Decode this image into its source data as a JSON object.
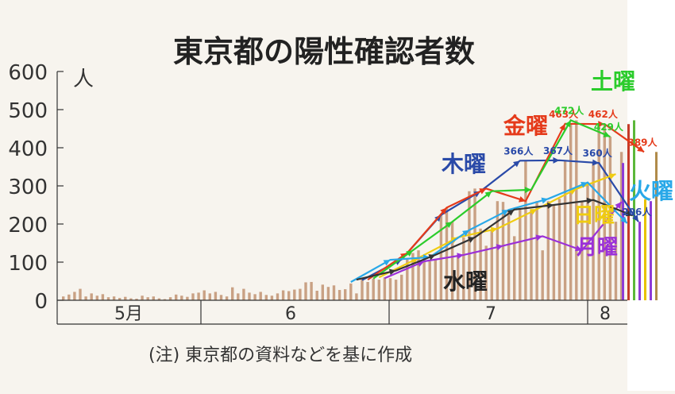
{
  "chart_data": {
    "type": "bar",
    "title": "東京都の陽性確認者数",
    "ylabel": "人",
    "ylim": [
      0,
      600
    ],
    "yticks": [
      "0",
      "100",
      "200",
      "300",
      "400",
      "500",
      "600"
    ],
    "month_labels": [
      "5月",
      "6",
      "7",
      "8"
    ],
    "note": "(注) 東京都の資料などを基に作成",
    "grid": false,
    "bar_color": "#c9a184",
    "values": [
      10,
      15,
      22,
      30,
      10,
      18,
      12,
      16,
      8,
      10,
      6,
      9,
      5,
      4,
      12,
      8,
      10,
      5,
      3,
      8,
      15,
      12,
      9,
      18,
      20,
      26,
      18,
      22,
      14,
      10,
      34,
      18,
      30,
      20,
      16,
      22,
      14,
      12,
      18,
      26,
      24,
      28,
      30,
      47,
      48,
      25,
      41,
      35,
      39,
      27,
      29,
      44,
      18,
      55,
      48,
      57,
      54,
      60,
      58,
      54,
      67,
      107,
      124,
      131,
      111,
      102,
      106,
      224,
      243,
      206,
      119,
      165,
      286,
      293,
      188,
      143,
      184,
      260,
      258,
      237,
      168,
      238,
      366,
      237,
      260,
      131,
      260,
      250,
      266,
      367,
      463,
      472,
      258,
      309,
      360,
      463,
      462,
      429,
      206,
      389
    ],
    "vertical_marks": [
      {
        "value": 360,
        "color": "#8e3bd6"
      },
      {
        "value": 462,
        "color": "#c53a28"
      },
      {
        "value": 472,
        "color": "#5bb83a"
      },
      {
        "value": 206,
        "color": "#8e3bd6"
      },
      {
        "value": 265,
        "color": "#e8c200"
      },
      {
        "value": 260,
        "color": "#8e3bd6"
      },
      {
        "value": 389,
        "color": "#b08b4a"
      }
    ],
    "series": [
      {
        "name": "木曜",
        "color": "#2a4aa8",
        "label_color": "#2a4aa8",
        "points": [
          [
            53,
            53
          ],
          [
            60,
            107
          ],
          [
            67,
            224
          ],
          [
            74,
            286
          ],
          [
            81,
            366
          ],
          [
            88,
            367
          ],
          [
            95,
            360
          ],
          [
            102,
            206
          ]
        ],
        "data_labels": [
          {
            "i": 4,
            "text": "366人"
          },
          {
            "i": 5,
            "text": "367人"
          },
          {
            "i": 6,
            "text": "360人"
          },
          {
            "i": 7,
            "text": "206人"
          }
        ]
      },
      {
        "name": "金曜",
        "color": "#e53a1a",
        "label_color": "#e53a1a",
        "points": [
          [
            54,
            54
          ],
          [
            61,
            124
          ],
          [
            68,
            243
          ],
          [
            75,
            293
          ],
          [
            82,
            260
          ],
          [
            89,
            463
          ],
          [
            96,
            462
          ],
          [
            103,
            389
          ]
        ],
        "data_labels": [
          {
            "i": 5,
            "text": "463人"
          },
          {
            "i": 6,
            "text": "462人"
          },
          {
            "i": 7,
            "text": "389人"
          }
        ]
      },
      {
        "name": "土曜",
        "color": "#2bcc2b",
        "label_color": "#2bcc2b",
        "points": [
          [
            55,
            57
          ],
          [
            62,
            131
          ],
          [
            69,
            206
          ],
          [
            76,
            286
          ],
          [
            83,
            290
          ],
          [
            90,
            472
          ],
          [
            97,
            429
          ]
        ],
        "data_labels": [
          {
            "i": 5,
            "text": "472人"
          },
          {
            "i": 6,
            "text": "429人"
          }
        ]
      },
      {
        "name": "日曜",
        "color": "#f0cc10",
        "label_color": "#f0cc10",
        "points": [
          [
            56,
            60
          ],
          [
            63,
            111
          ],
          [
            70,
            165
          ],
          [
            77,
            188
          ],
          [
            84,
            239
          ],
          [
            91,
            292
          ],
          [
            98,
            331
          ]
        ],
        "data_labels": []
      },
      {
        "name": "月曜",
        "color": "#9b30d8",
        "label_color": "#9b30d8",
        "points": [
          [
            57,
            58
          ],
          [
            64,
            102
          ],
          [
            71,
            119
          ],
          [
            78,
            143
          ],
          [
            85,
            168
          ],
          [
            92,
            131
          ],
          [
            99,
            258
          ]
        ],
        "data_labels": []
      },
      {
        "name": "火曜",
        "color": "#29a8e8",
        "label_color": "#29a8e8",
        "points": [
          [
            51,
            48
          ],
          [
            58,
            106
          ],
          [
            65,
            113
          ],
          [
            72,
            184
          ],
          [
            79,
            237
          ],
          [
            86,
            266
          ],
          [
            93,
            309
          ],
          [
            100,
            202
          ]
        ],
        "data_labels": []
      },
      {
        "name": "水曜",
        "color": "#333333",
        "label_color": "#222222",
        "points": [
          [
            52,
            54
          ],
          [
            59,
            78
          ],
          [
            66,
            119
          ],
          [
            73,
            165
          ],
          [
            80,
            238
          ],
          [
            87,
            250
          ],
          [
            94,
            263
          ],
          [
            101,
            222
          ]
        ],
        "data_labels": []
      }
    ],
    "data_label_color_overrides": {
      "429人": "#2bcc2b",
      "389人": "#e53a1a",
      "206人": "#2a4aa8"
    }
  },
  "colors": {
    "background": "#f7f4ee",
    "axis": "#333333",
    "text": "#222222"
  }
}
